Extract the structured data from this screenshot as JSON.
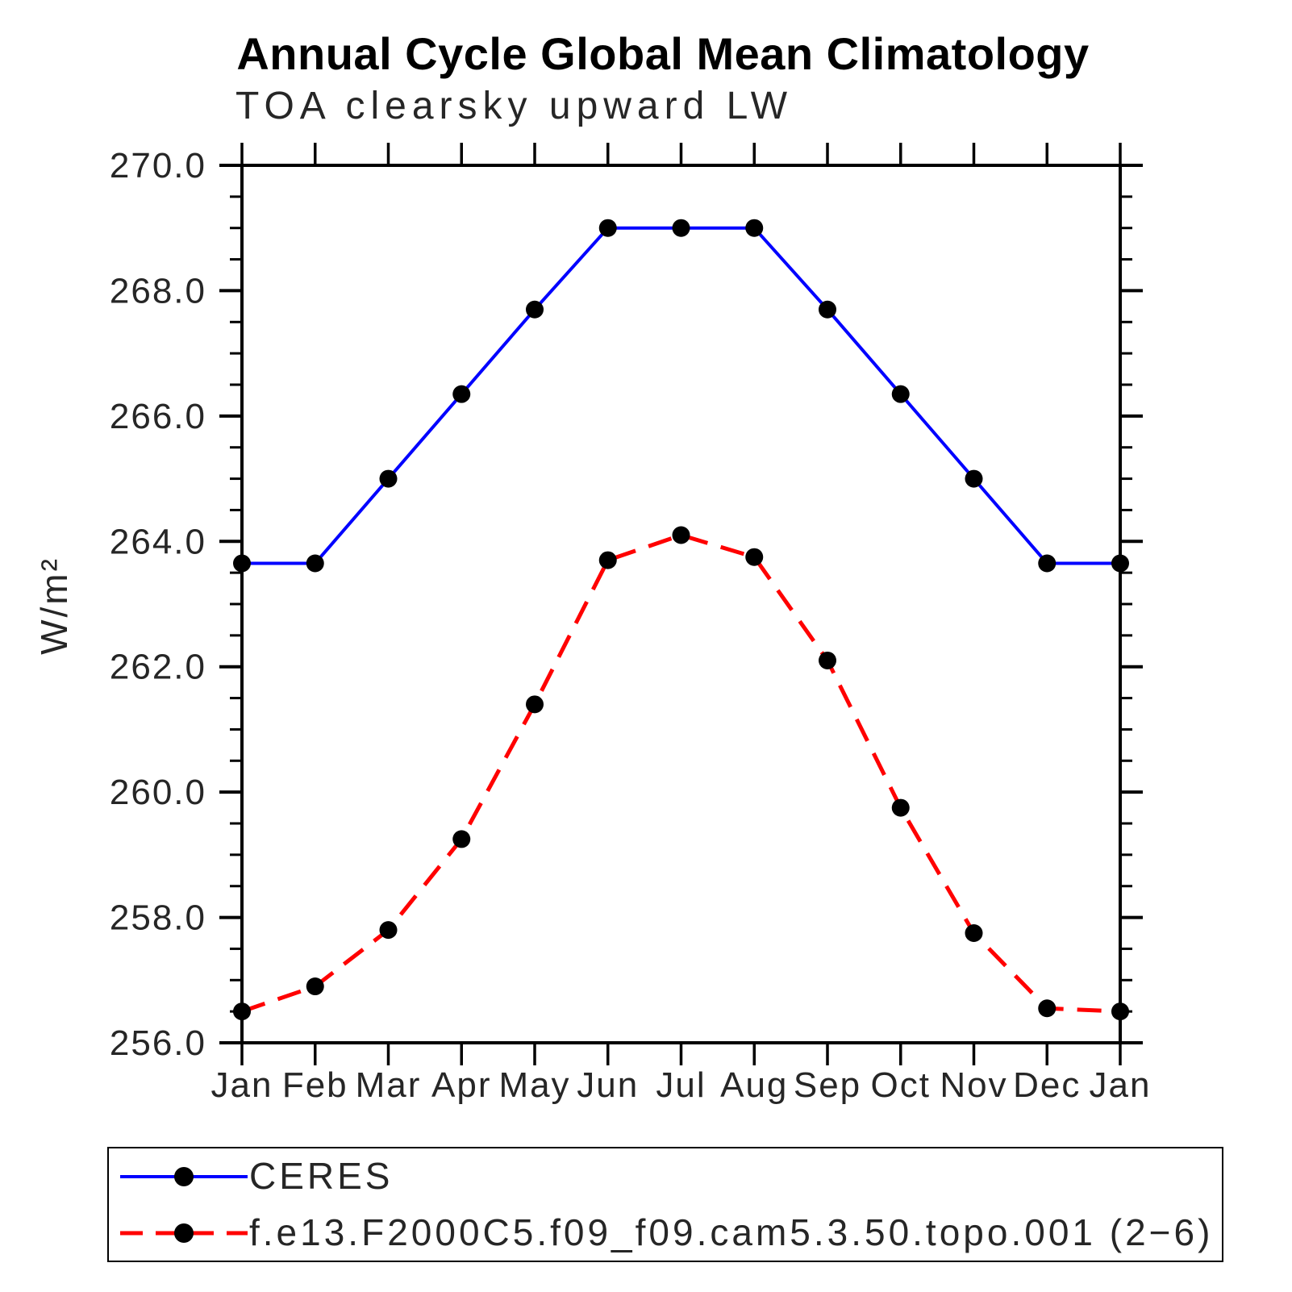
{
  "page": {
    "background": "#ffffff"
  },
  "chart_data": {
    "type": "line",
    "title": "Annual Cycle Global Mean Climatology",
    "subtitle": "TOA clearsky upward LW",
    "ylabel": "W/m²",
    "xlabel": "",
    "categories": [
      "Jan",
      "Feb",
      "Mar",
      "Apr",
      "May",
      "Jun",
      "Jul",
      "Aug",
      "Sep",
      "Oct",
      "Nov",
      "Dec",
      "Jan"
    ],
    "ylim": [
      256.0,
      270.0
    ],
    "ytick_major": 2.0,
    "ytick_minor": 0.5,
    "yticks": {
      "values": [
        270.0,
        268.0,
        266.0,
        264.0,
        262.0,
        260.0,
        258.0,
        256.0
      ],
      "labels": [
        "270.0",
        "268.0",
        "266.0",
        "264.0",
        "262.0",
        "260.0",
        "258.0",
        "256.0"
      ]
    },
    "grid": "off",
    "legend_position": "bottom-left-box",
    "marker": {
      "shape": "circle",
      "color": "#000000"
    },
    "axis_color": "#000000",
    "series": [
      {
        "name": "CERES",
        "color": "#0000ff",
        "style": "solid",
        "values": [
          263.65,
          263.65,
          265.0,
          266.35,
          267.7,
          269.0,
          269.0,
          269.0,
          267.7,
          266.35,
          265.0,
          263.65,
          263.65
        ]
      },
      {
        "name": "f.e13.F2000C5.f09_f09.cam5.3.50.topo.001 (2−6)",
        "color": "#ff0000",
        "style": "dashed",
        "values": [
          256.5,
          256.9,
          257.8,
          259.25,
          261.4,
          263.7,
          264.1,
          263.75,
          262.1,
          259.75,
          257.75,
          256.55,
          256.5
        ]
      }
    ]
  }
}
